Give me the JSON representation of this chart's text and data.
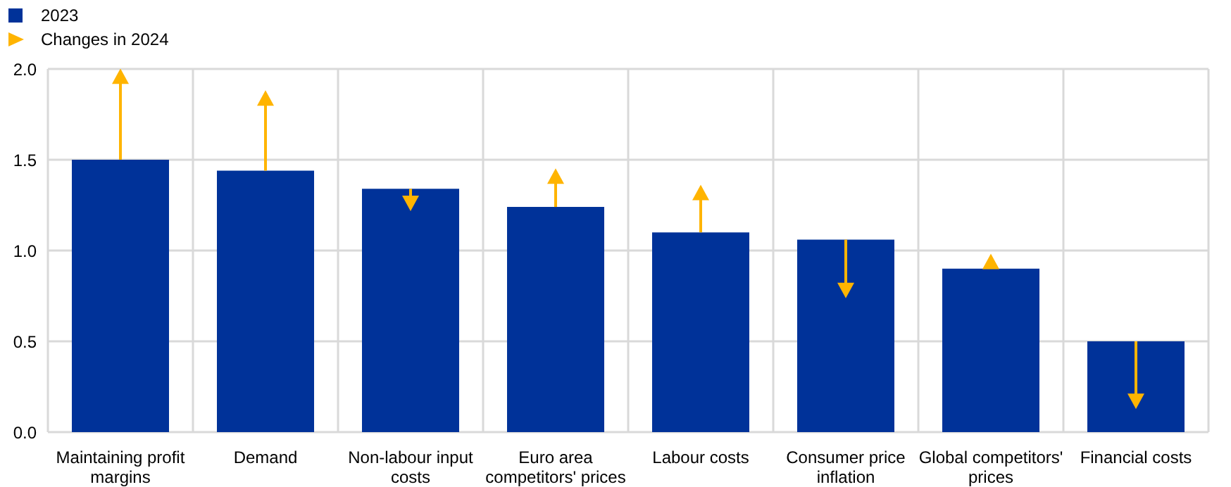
{
  "chart_data": {
    "type": "bar",
    "categories": [
      "Maintaining profit margins",
      "Demand",
      "Non-labour input costs",
      "Euro area competitors' prices",
      "Labour costs",
      "Consumer price inflation",
      "Global competitors' prices",
      "Financial costs"
    ],
    "series": [
      {
        "name": "2023",
        "color": "#003299",
        "values": [
          1.5,
          1.44,
          1.34,
          1.24,
          1.1,
          1.06,
          0.9,
          0.5
        ]
      },
      {
        "name": "Changes in 2024",
        "type": "scatter",
        "color": "#ffb400",
        "values": [
          1.96,
          1.84,
          1.26,
          1.41,
          1.32,
          0.78,
          0.94,
          0.17
        ],
        "errors": [
          [
            1.5,
            1.96
          ],
          [
            1.44,
            1.84
          ],
          [
            1.26,
            1.34
          ],
          [
            1.24,
            1.41
          ],
          [
            1.1,
            1.32
          ],
          [
            0.78,
            1.06
          ],
          [
            0.9,
            0.94
          ],
          [
            0.17,
            0.5
          ]
        ]
      }
    ],
    "ylim": [
      0,
      2
    ],
    "yticks": [
      {
        "value": 0,
        "label": "0.0"
      },
      {
        "value": 0.5,
        "label": "0.5"
      },
      {
        "value": 1,
        "label": "1.0"
      },
      {
        "value": 1.5,
        "label": "1.5"
      },
      {
        "value": 2,
        "label": "2.0"
      }
    ],
    "grid": true,
    "legend": "top left",
    "marker": "triangle"
  }
}
